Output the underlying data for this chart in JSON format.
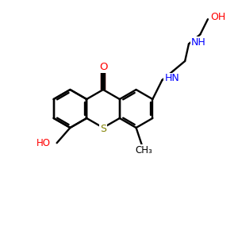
{
  "bg_color": "#ffffff",
  "bond_color": "#000000",
  "O_color": "#ff0000",
  "N_color": "#0000ff",
  "S_color": "#808000",
  "bond_lw": 1.7,
  "font_size": 8.5
}
